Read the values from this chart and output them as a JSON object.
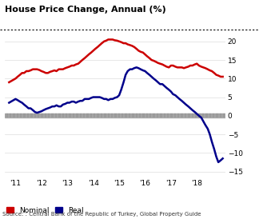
{
  "title": "House Price Change, Annual (%)",
  "source": "Source: : Central Bank of the Republic of Turkey, Global Property Guide",
  "nominal_color": "#cc0000",
  "real_color": "#00008b",
  "background_color": "#ffffff",
  "ylim": [
    -16,
    22
  ],
  "yticks": [
    -15,
    -10,
    -5,
    0,
    5,
    10,
    15,
    20
  ],
  "xlim_start": 2010.6,
  "xlim_end": 2019.1,
  "xtick_labels": [
    "'11",
    "'12",
    "'13",
    "'14",
    "'15",
    "'16",
    "'17",
    "'18"
  ],
  "xtick_positions": [
    2011,
    2012,
    2013,
    2014,
    2015,
    2016,
    2017,
    2018
  ],
  "nominal_x": [
    2010.75,
    2011.0,
    2011.08,
    2011.17,
    2011.25,
    2011.33,
    2011.42,
    2011.5,
    2011.58,
    2011.67,
    2011.75,
    2011.83,
    2011.92,
    2012.0,
    2012.08,
    2012.17,
    2012.25,
    2012.33,
    2012.42,
    2012.5,
    2012.58,
    2012.67,
    2012.75,
    2012.83,
    2012.92,
    2013.0,
    2013.08,
    2013.17,
    2013.25,
    2013.33,
    2013.42,
    2013.5,
    2013.58,
    2013.67,
    2013.75,
    2013.83,
    2013.92,
    2014.0,
    2014.08,
    2014.17,
    2014.25,
    2014.33,
    2014.42,
    2014.5,
    2014.58,
    2014.67,
    2014.75,
    2014.83,
    2014.92,
    2015.0,
    2015.08,
    2015.17,
    2015.25,
    2015.33,
    2015.42,
    2015.5,
    2015.58,
    2015.67,
    2015.75,
    2015.83,
    2015.92,
    2016.0,
    2016.08,
    2016.17,
    2016.25,
    2016.33,
    2016.42,
    2016.5,
    2016.58,
    2016.67,
    2016.75,
    2016.83,
    2016.92,
    2017.0,
    2017.08,
    2017.17,
    2017.25,
    2017.33,
    2017.42,
    2017.5,
    2017.58,
    2017.67,
    2017.75,
    2017.83,
    2017.92,
    2018.0,
    2018.08,
    2018.17,
    2018.25,
    2018.33,
    2018.42,
    2018.5,
    2018.58,
    2018.67,
    2018.75,
    2018.83,
    2018.92,
    2019.0
  ],
  "nominal_y": [
    9.0,
    10.0,
    10.5,
    11.0,
    11.5,
    11.5,
    12.0,
    12.0,
    12.2,
    12.5,
    12.5,
    12.5,
    12.3,
    12.0,
    11.8,
    11.5,
    11.5,
    11.8,
    12.0,
    12.2,
    12.0,
    12.5,
    12.5,
    12.5,
    12.8,
    13.0,
    13.2,
    13.5,
    13.5,
    13.8,
    14.0,
    14.5,
    15.0,
    15.5,
    16.0,
    16.5,
    17.0,
    17.5,
    18.0,
    18.5,
    19.0,
    19.5,
    20.0,
    20.2,
    20.5,
    20.5,
    20.5,
    20.3,
    20.2,
    20.0,
    19.8,
    19.5,
    19.5,
    19.2,
    19.0,
    18.8,
    18.5,
    18.0,
    17.5,
    17.2,
    17.0,
    16.5,
    16.0,
    15.5,
    15.0,
    14.8,
    14.5,
    14.2,
    14.0,
    13.8,
    13.5,
    13.2,
    13.0,
    13.5,
    13.5,
    13.2,
    13.0,
    13.0,
    13.0,
    12.8,
    13.0,
    13.2,
    13.5,
    13.5,
    13.8,
    14.0,
    13.5,
    13.2,
    13.0,
    12.8,
    12.5,
    12.2,
    12.0,
    11.5,
    11.0,
    10.8,
    10.5,
    10.5
  ],
  "real_x": [
    2010.75,
    2011.0,
    2011.08,
    2011.17,
    2011.25,
    2011.33,
    2011.42,
    2011.5,
    2011.58,
    2011.67,
    2011.75,
    2011.83,
    2011.92,
    2012.0,
    2012.08,
    2012.17,
    2012.25,
    2012.33,
    2012.42,
    2012.5,
    2012.58,
    2012.67,
    2012.75,
    2012.83,
    2012.92,
    2013.0,
    2013.08,
    2013.17,
    2013.25,
    2013.33,
    2013.42,
    2013.5,
    2013.58,
    2013.67,
    2013.75,
    2013.83,
    2013.92,
    2014.0,
    2014.08,
    2014.17,
    2014.25,
    2014.33,
    2014.42,
    2014.5,
    2014.58,
    2014.67,
    2014.75,
    2014.83,
    2014.92,
    2015.0,
    2015.08,
    2015.17,
    2015.25,
    2015.33,
    2015.42,
    2015.5,
    2015.58,
    2015.67,
    2015.75,
    2015.83,
    2015.92,
    2016.0,
    2016.08,
    2016.17,
    2016.25,
    2016.33,
    2016.42,
    2016.5,
    2016.58,
    2016.67,
    2016.75,
    2016.83,
    2016.92,
    2017.0,
    2017.08,
    2017.17,
    2017.25,
    2017.33,
    2017.42,
    2017.5,
    2017.58,
    2017.67,
    2017.75,
    2017.83,
    2017.92,
    2018.0,
    2018.08,
    2018.17,
    2018.25,
    2018.33,
    2018.42,
    2018.5,
    2018.58,
    2018.67,
    2018.75,
    2018.83,
    2018.92,
    2019.0
  ],
  "real_y": [
    3.5,
    4.5,
    4.2,
    3.8,
    3.5,
    3.0,
    2.5,
    2.0,
    2.0,
    1.5,
    1.0,
    0.8,
    1.0,
    1.2,
    1.5,
    1.8,
    2.0,
    2.2,
    2.5,
    2.5,
    2.8,
    2.5,
    2.5,
    3.0,
    3.2,
    3.5,
    3.5,
    3.8,
    3.8,
    3.5,
    3.8,
    4.0,
    4.0,
    4.5,
    4.5,
    4.5,
    4.8,
    5.0,
    5.0,
    5.0,
    5.0,
    4.8,
    4.5,
    4.5,
    4.2,
    4.5,
    4.5,
    4.8,
    5.0,
    5.5,
    7.0,
    9.0,
    11.0,
    12.0,
    12.5,
    12.5,
    12.8,
    13.0,
    12.8,
    12.5,
    12.2,
    12.0,
    11.5,
    11.0,
    10.5,
    10.0,
    9.5,
    9.0,
    8.5,
    8.5,
    8.0,
    7.5,
    7.0,
    6.5,
    5.8,
    5.5,
    5.0,
    4.5,
    4.0,
    3.5,
    3.0,
    2.5,
    2.0,
    1.5,
    1.0,
    0.5,
    0.0,
    -0.5,
    -1.5,
    -2.5,
    -3.5,
    -5.0,
    -7.0,
    -9.0,
    -11.0,
    -12.5,
    -12.0,
    -11.5
  ],
  "legend_nominal": "Nominal",
  "legend_real": "Real",
  "ruler_color": "#aaaaaa",
  "grid_color": "#dddddd",
  "ruler_height": 0.5
}
